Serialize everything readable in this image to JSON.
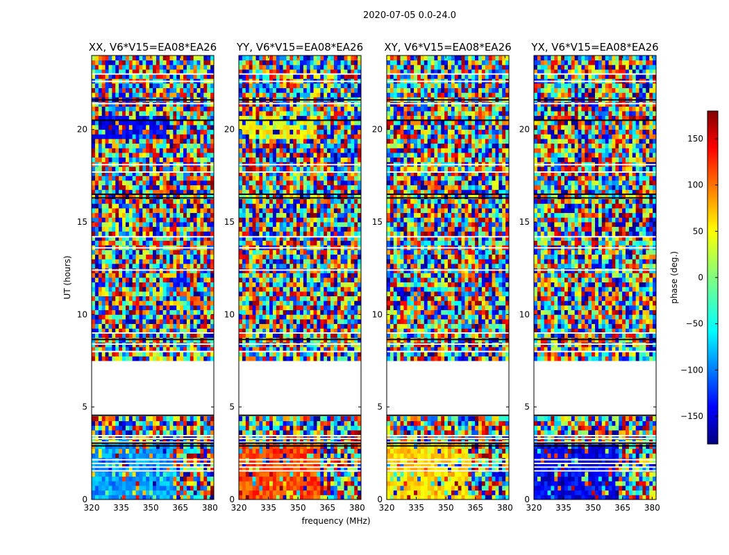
{
  "figure": {
    "suptitle": "2020-07-05 0.0-24.0",
    "xlabel": "frequency (MHz)",
    "ylabel": "UT (hours)",
    "colorbar_label": "phase (deg.)"
  },
  "chart_data": {
    "type": "heatmap",
    "title": "2020-07-05 0.0-24.0",
    "xlabel": "frequency (MHz)",
    "ylabel": "UT (hours)",
    "xlim": [
      320,
      382
    ],
    "ylim": [
      0,
      24
    ],
    "xticks": [
      320,
      335,
      350,
      365,
      380
    ],
    "yticks": [
      0,
      5,
      10,
      15,
      20
    ],
    "colorbar": {
      "label": "phase (deg.)",
      "range": [
        -180,
        180
      ],
      "ticks": [
        150,
        100,
        50,
        0,
        -50,
        -100,
        -150
      ],
      "tick_labels": [
        "150",
        "100",
        "50",
        "0",
        "−50",
        "−100",
        "−150"
      ],
      "colormap": [
        "#000080",
        "#0000ff",
        "#0080ff",
        "#00ffff",
        "#80ff80",
        "#ffff00",
        "#ff8000",
        "#ff0000",
        "#800000"
      ]
    },
    "no_data_hours": [
      4.6,
      7.4
    ],
    "panels": [
      {
        "title": "XX, V6*V15=EA08*EA26",
        "mean_phase_0_3h": -80,
        "mean_phase_19_21h": -140
      },
      {
        "title": "YY, V6*V15=EA08*EA26",
        "mean_phase_0_3h": 110,
        "mean_phase_19_21h": 40
      },
      {
        "title": "XY, V6*V15=EA08*EA26",
        "mean_phase_0_3h": 60,
        "mean_phase_19_21h": null
      },
      {
        "title": "YX, V6*V15=EA08*EA26",
        "mean_phase_0_3h": -140,
        "mean_phase_19_21h": null
      }
    ]
  }
}
